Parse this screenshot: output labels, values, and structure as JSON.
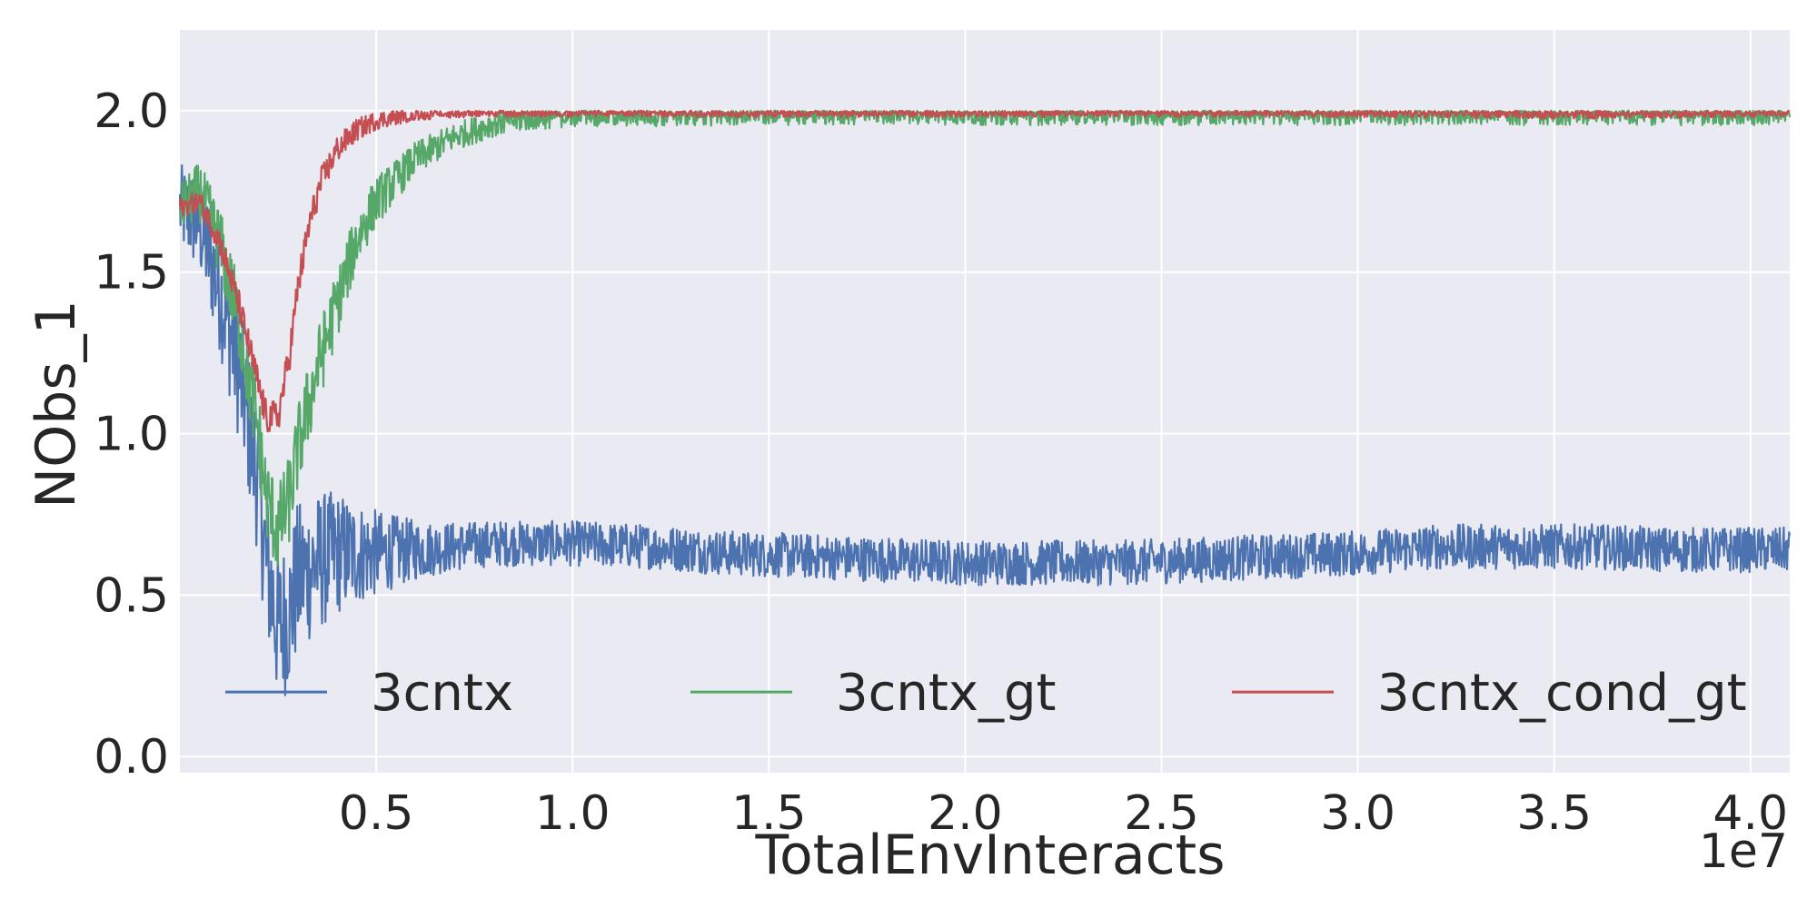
{
  "chart_data": {
    "type": "line",
    "title": "",
    "xlabel": "TotalEnvInteracts",
    "ylabel": "NObs_1",
    "x_scale_label": "1e7",
    "xlim": [
      0,
      4.1
    ],
    "ylim": [
      -0.05,
      2.25
    ],
    "x_ticks": [
      0.5,
      1.0,
      1.5,
      2.0,
      2.5,
      3.0,
      3.5,
      4.0
    ],
    "x_tick_labels": [
      "0.5",
      "1.0",
      "1.5",
      "2.0",
      "2.5",
      "3.0",
      "3.5",
      "4.0"
    ],
    "y_ticks": [
      0.0,
      0.5,
      1.0,
      1.5,
      2.0
    ],
    "y_tick_labels": [
      "0.0",
      "0.5",
      "1.0",
      "1.5",
      "2.0"
    ],
    "grid": true,
    "legend_position": "bottom",
    "series": [
      {
        "name": "3cntx",
        "color": "#4c72b0",
        "x": [
          0.0,
          0.05,
          0.1,
          0.15,
          0.2,
          0.22,
          0.25,
          0.28,
          0.3,
          0.35,
          0.4,
          0.5,
          0.6,
          0.7,
          0.8,
          0.9,
          1.0,
          1.2,
          1.4,
          1.6,
          1.8,
          2.0,
          2.2,
          2.4,
          2.6,
          2.8,
          3.0,
          3.2,
          3.4,
          3.6,
          3.8,
          4.0,
          4.1
        ],
        "values": [
          1.7,
          1.65,
          1.45,
          1.2,
          0.85,
          0.6,
          0.4,
          0.45,
          0.55,
          0.6,
          0.63,
          0.63,
          0.64,
          0.65,
          0.66,
          0.66,
          0.66,
          0.65,
          0.63,
          0.62,
          0.61,
          0.6,
          0.6,
          0.6,
          0.61,
          0.62,
          0.63,
          0.65,
          0.65,
          0.65,
          0.64,
          0.64,
          0.64
        ],
        "noise": 0.07
      },
      {
        "name": "3cntx_gt",
        "color": "#55a868",
        "x": [
          0.0,
          0.05,
          0.1,
          0.15,
          0.2,
          0.22,
          0.25,
          0.28,
          0.3,
          0.35,
          0.4,
          0.45,
          0.5,
          0.6,
          0.7,
          0.8,
          0.9,
          1.0,
          1.1,
          1.5,
          2.0,
          2.5,
          3.0,
          3.5,
          4.0,
          4.1
        ],
        "values": [
          1.7,
          1.75,
          1.6,
          1.35,
          1.0,
          0.8,
          0.7,
          0.8,
          0.95,
          1.2,
          1.4,
          1.6,
          1.72,
          1.85,
          1.92,
          1.96,
          1.98,
          1.99,
          1.99,
          1.995,
          1.995,
          1.995,
          1.995,
          1.995,
          1.995,
          1.995
        ],
        "noise": 0.04
      },
      {
        "name": "3cntx_cond_gt",
        "color": "#c44e52",
        "x": [
          0.0,
          0.05,
          0.1,
          0.15,
          0.2,
          0.22,
          0.25,
          0.28,
          0.3,
          0.33,
          0.36,
          0.4,
          0.45,
          0.5,
          0.6,
          0.7,
          0.8,
          1.0,
          1.5,
          2.0,
          2.5,
          3.0,
          3.5,
          4.0,
          4.1
        ],
        "values": [
          1.7,
          1.72,
          1.6,
          1.4,
          1.15,
          1.05,
          1.05,
          1.25,
          1.45,
          1.65,
          1.78,
          1.88,
          1.94,
          1.97,
          1.99,
          1.995,
          1.995,
          1.995,
          1.995,
          1.995,
          1.995,
          1.995,
          1.99,
          1.995,
          1.995
        ],
        "noise": 0.015
      }
    ]
  }
}
